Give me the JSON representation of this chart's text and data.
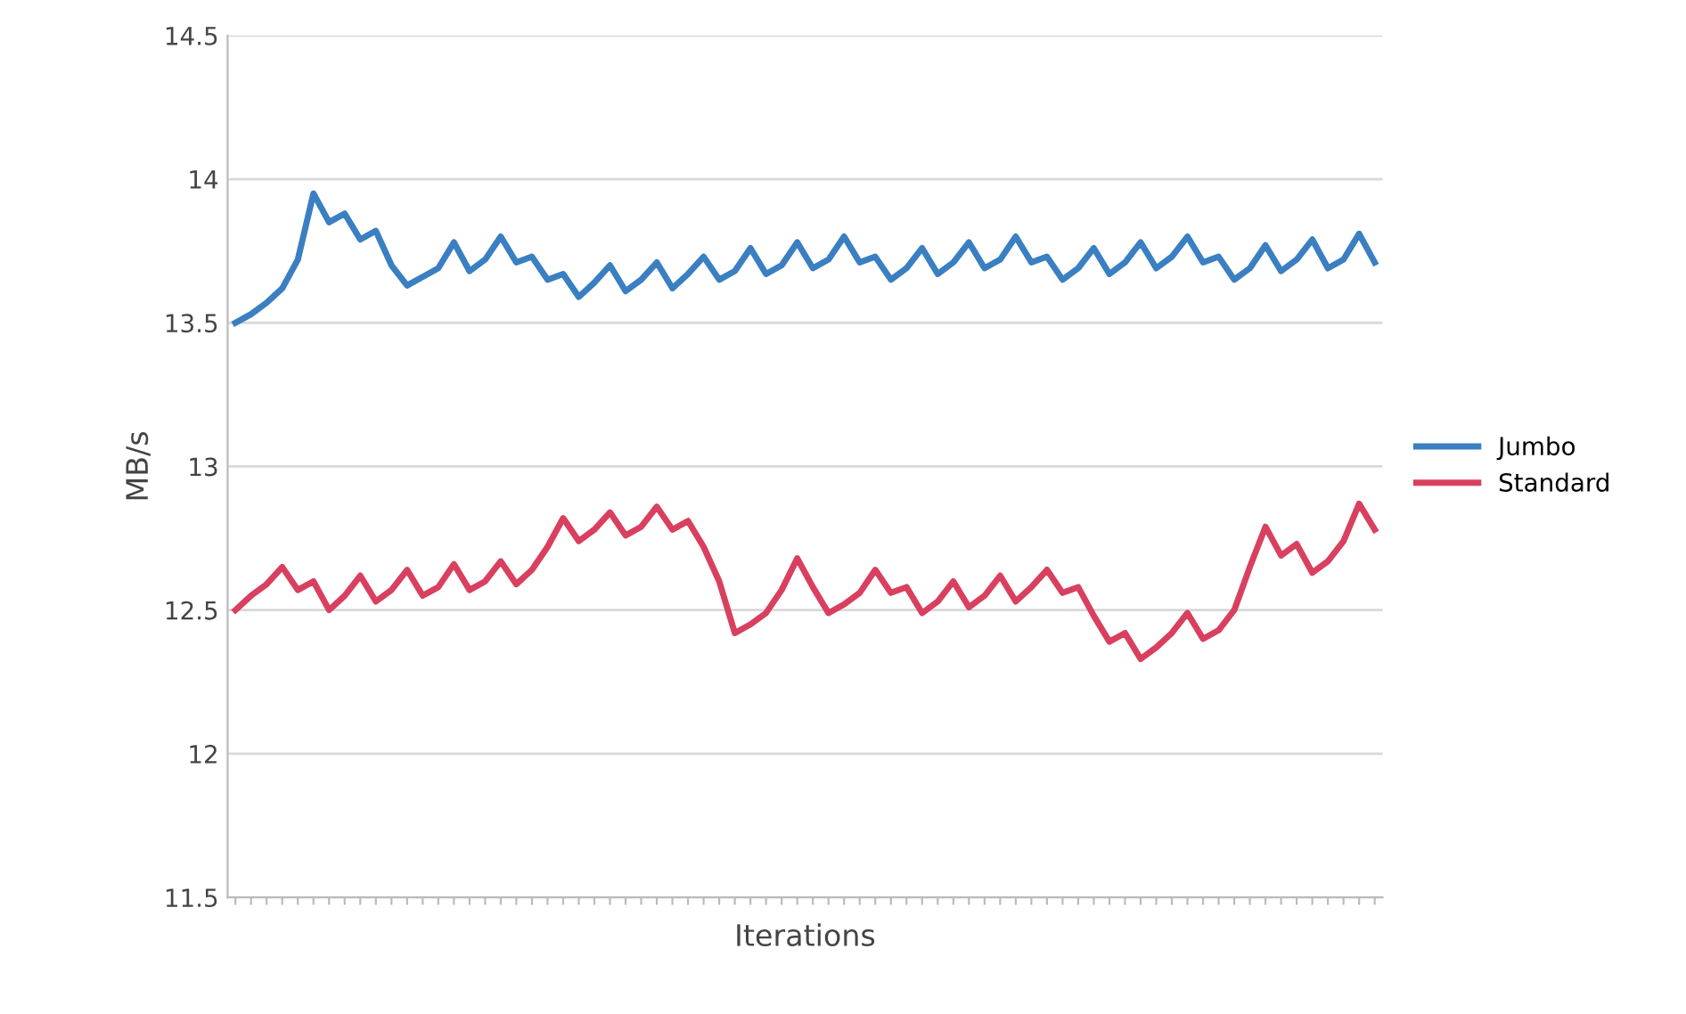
{
  "chart_data": {
    "type": "line",
    "xlabel": "Iterations",
    "ylabel": "MB/s",
    "categories": [
      null,
      null,
      null,
      null,
      null,
      null,
      null,
      null,
      null,
      null,
      null,
      null,
      null,
      null,
      null,
      null,
      null,
      null,
      null,
      null,
      null,
      null,
      null,
      null,
      null,
      null,
      null,
      null,
      null,
      null,
      null,
      null,
      null,
      null,
      null,
      null,
      null,
      null,
      null,
      null,
      null,
      null,
      null,
      null,
      null,
      null,
      null,
      null,
      null,
      null,
      null,
      null,
      null,
      null,
      null,
      null,
      null,
      null,
      null,
      null,
      null,
      null,
      null,
      null,
      null,
      null,
      null,
      null,
      null,
      null,
      null,
      null,
      null,
      null
    ],
    "series": [
      {
        "name": "Jumbo",
        "color": "#3a7fc1",
        "values": [
          13.5,
          13.53,
          13.57,
          13.62,
          13.72,
          13.95,
          13.85,
          13.88,
          13.79,
          13.82,
          13.7,
          13.63,
          13.66,
          13.69,
          13.78,
          13.68,
          13.72,
          13.8,
          13.71,
          13.73,
          13.65,
          13.67,
          13.59,
          13.64,
          13.7,
          13.61,
          13.65,
          13.71,
          13.62,
          13.67,
          13.73,
          13.65,
          13.68,
          13.76,
          13.67,
          13.7,
          13.78,
          13.69,
          13.72,
          13.8,
          13.71,
          13.73,
          13.65,
          13.69,
          13.76,
          13.67,
          13.71,
          13.78,
          13.69,
          13.72,
          13.8,
          13.71,
          13.73,
          13.65,
          13.69,
          13.76,
          13.67,
          13.71,
          13.78,
          13.69,
          13.73,
          13.8,
          13.71,
          13.73,
          13.65,
          13.69,
          13.77,
          13.68,
          13.72,
          13.79,
          13.69,
          13.72,
          13.81,
          13.71
        ]
      },
      {
        "name": "Standard",
        "color": "#d9405f",
        "values": [
          12.5,
          12.55,
          12.59,
          12.65,
          12.57,
          12.6,
          12.5,
          12.55,
          12.62,
          12.53,
          12.57,
          12.64,
          12.55,
          12.58,
          12.66,
          12.57,
          12.6,
          12.67,
          12.59,
          12.64,
          12.72,
          12.82,
          12.74,
          12.78,
          12.84,
          12.76,
          12.79,
          12.86,
          12.78,
          12.81,
          12.72,
          12.6,
          12.42,
          12.45,
          12.49,
          12.57,
          12.68,
          12.58,
          12.49,
          12.52,
          12.56,
          12.64,
          12.56,
          12.58,
          12.49,
          12.53,
          12.6,
          12.51,
          12.55,
          12.62,
          12.53,
          12.58,
          12.64,
          12.56,
          12.58,
          12.48,
          12.39,
          12.42,
          12.33,
          12.37,
          12.42,
          12.49,
          12.4,
          12.43,
          12.5,
          12.65,
          12.79,
          12.69,
          12.73,
          12.63,
          12.67,
          12.74,
          12.87,
          12.78
        ]
      }
    ],
    "ylim": [
      11.5,
      14.5
    ],
    "yticks": [
      11.5,
      12,
      12.5,
      13,
      13.5,
      14,
      14.5
    ],
    "grid": "y",
    "legend": "right",
    "marker": "none",
    "line_style": "solid"
  }
}
